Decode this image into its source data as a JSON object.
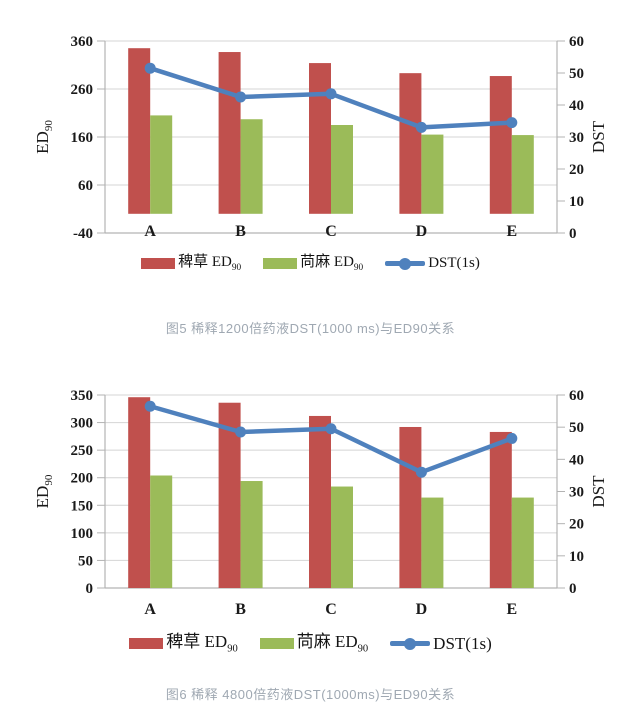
{
  "chart_data": [
    {
      "type": "combo-bar-line",
      "figure": "图5",
      "caption": "图5  稀释1200倍药液DST(1000 ms)与ED90关系",
      "categories": [
        "A",
        "B",
        "C",
        "D",
        "E"
      ],
      "series": [
        {
          "label": "稗草 ED",
          "label_sub": "90",
          "type": "bar",
          "axis": "left",
          "color": "#C0504D",
          "values": [
            345,
            337,
            314,
            293,
            287
          ]
        },
        {
          "label": "苘麻 ED",
          "label_sub": "90",
          "type": "bar",
          "axis": "left",
          "color": "#9BBB59",
          "values": [
            205,
            197,
            185,
            165,
            164
          ]
        },
        {
          "label": "DST(1s)",
          "label_sub": "",
          "type": "line",
          "axis": "right",
          "color": "#4F81BD",
          "values": [
            51.5,
            42.5,
            43.5,
            33,
            34.5
          ]
        }
      ],
      "left_axis": {
        "title": "ED",
        "title_sub": "90",
        "min": -40,
        "max": 360,
        "ticks": [
          360,
          260,
          160,
          60,
          -40
        ],
        "bar_baseline": 0
      },
      "right_axis": {
        "title": "DST",
        "min": 0,
        "max": 60,
        "ticks": [
          60,
          50,
          40,
          30,
          20,
          10,
          0
        ]
      },
      "grid": true,
      "legend_position": "bottom"
    },
    {
      "type": "combo-bar-line",
      "figure": "图6",
      "caption": "图6 稀释 4800倍药液DST(1000ms)与ED90关系",
      "categories": [
        "A",
        "B",
        "C",
        "D",
        "E"
      ],
      "series": [
        {
          "label": "稗草 ED",
          "label_sub": "90",
          "type": "bar",
          "axis": "left",
          "color": "#C0504D",
          "values": [
            346,
            336,
            312,
            292,
            283
          ]
        },
        {
          "label": "苘麻 ED",
          "label_sub": "90",
          "type": "bar",
          "axis": "left",
          "color": "#9BBB59",
          "values": [
            204,
            194,
            184,
            164,
            164
          ]
        },
        {
          "label": "DST(1s)",
          "label_sub": "",
          "type": "line",
          "axis": "right",
          "color": "#4F81BD",
          "values": [
            56.5,
            48.5,
            49.5,
            36,
            46.5
          ]
        }
      ],
      "left_axis": {
        "title": "ED",
        "title_sub": "90",
        "min": 0,
        "max": 350,
        "ticks": [
          350,
          300,
          250,
          200,
          150,
          100,
          50,
          0
        ],
        "bar_baseline": 0
      },
      "right_axis": {
        "title": "DST",
        "min": 0,
        "max": 60,
        "ticks": [
          60,
          50,
          40,
          30,
          20,
          10,
          0
        ]
      },
      "grid": true,
      "legend_position": "bottom"
    }
  ],
  "styles": {
    "background": "#ffffff",
    "grid_color": "#d4d4d4",
    "axis_line_color": "#b3b3b3",
    "tick_text_color": "#1a1a1a",
    "caption_color": "#9fa8b2"
  }
}
